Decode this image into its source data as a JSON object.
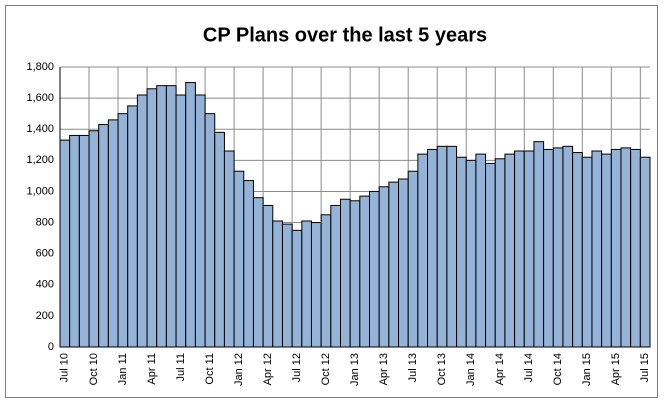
{
  "chart_data": {
    "type": "bar",
    "title": "CP Plans over the last 5 years",
    "categories": [
      "Jul 10",
      null,
      null,
      "Oct 10",
      null,
      null,
      "Jan 11",
      null,
      null,
      "Apr 11",
      null,
      null,
      "Jul 11",
      null,
      null,
      "Oct 11",
      null,
      null,
      "Jan 12",
      null,
      null,
      "Apr 12",
      null,
      null,
      "Jul 12",
      null,
      null,
      "Oct 12",
      null,
      null,
      "Jan 13",
      null,
      null,
      "Apr 13",
      null,
      null,
      "Jul 13",
      null,
      null,
      "Oct 13",
      null,
      null,
      "Jan 14",
      null,
      null,
      "Apr 14",
      null,
      null,
      "Jul 14",
      null,
      null,
      "Oct 14",
      null,
      null,
      "Jan 15",
      null,
      null,
      "Apr 15",
      null,
      null,
      "Jul 15"
    ],
    "values": [
      1330,
      1360,
      1360,
      1390,
      1430,
      1460,
      1500,
      1550,
      1620,
      1660,
      1680,
      1680,
      1620,
      1700,
      1620,
      1500,
      1380,
      1260,
      1130,
      1070,
      960,
      910,
      810,
      790,
      750,
      810,
      800,
      850,
      910,
      950,
      940,
      970,
      1000,
      1030,
      1060,
      1080,
      1130,
      1240,
      1270,
      1290,
      1290,
      1220,
      1200,
      1240,
      1180,
      1210,
      1240,
      1260,
      1260,
      1320,
      1270,
      1280,
      1290,
      1250,
      1220,
      1260,
      1240,
      1270,
      1280,
      1270,
      1220
    ],
    "color": "#95b3d7",
    "ylim": [
      0,
      1800
    ],
    "yticks": [
      0,
      200,
      400,
      600,
      800,
      {
        "value": 1000,
        "label": "1,000"
      },
      {
        "value": 1200,
        "label": "1,200"
      },
      {
        "value": 1400,
        "label": "1,400"
      },
      {
        "value": 1600,
        "label": "1,600"
      },
      {
        "value": 1800,
        "label": "1,800"
      }
    ],
    "grid": true
  }
}
